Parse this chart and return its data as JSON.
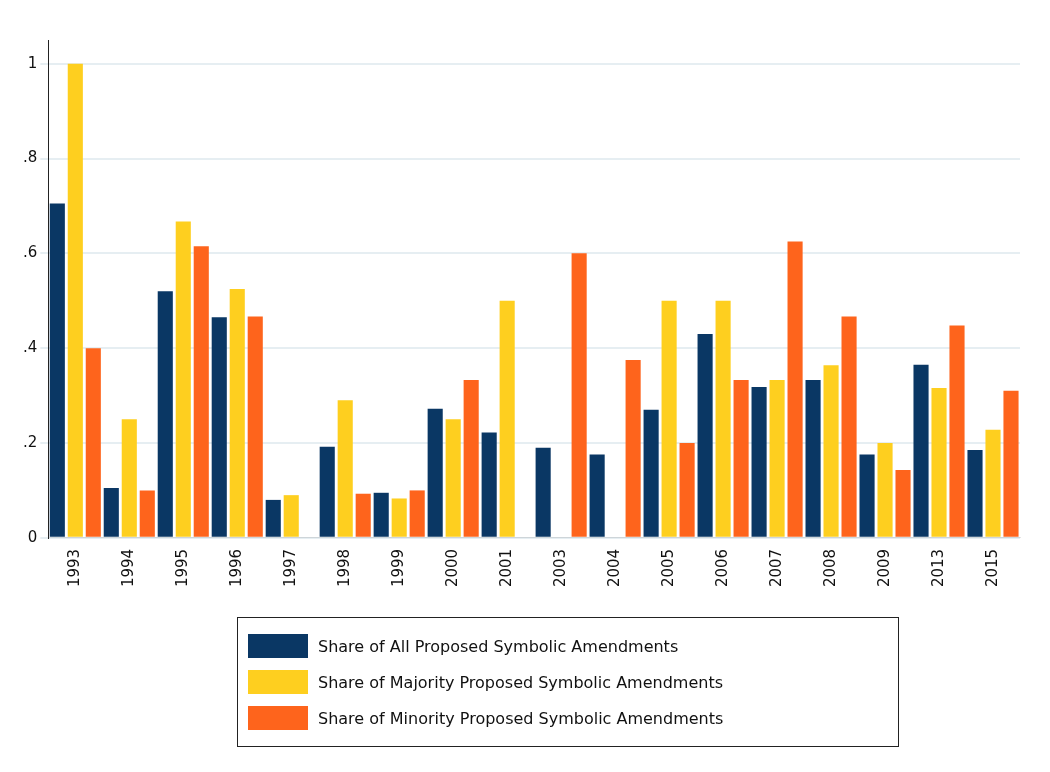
{
  "chart_data": {
    "type": "bar",
    "categories": [
      "1993",
      "1994",
      "1995",
      "1996",
      "1997",
      "1998",
      "1999",
      "2000",
      "2001",
      "2003",
      "2004",
      "2005",
      "2006",
      "2007",
      "2008",
      "2009",
      "2013",
      "2015"
    ],
    "series": [
      {
        "name": "Share of All Proposed Symbolic Amendments",
        "color": "#0a3764",
        "values": [
          0.705,
          0.105,
          0.52,
          0.465,
          0.08,
          0.192,
          0.095,
          0.272,
          0.222,
          0.19,
          0.176,
          0.27,
          0.43,
          0.318,
          0.333,
          0.176,
          0.365,
          0.185
        ]
      },
      {
        "name": "Share of Majority Proposed Symbolic Amendments",
        "color": "#fecf1f",
        "values": [
          1.0,
          0.25,
          0.667,
          0.525,
          0.09,
          0.29,
          0.083,
          0.25,
          0.5,
          null,
          null,
          0.5,
          0.5,
          0.333,
          0.364,
          0.2,
          0.316,
          0.228
        ]
      },
      {
        "name": "Share of Minority Proposed Symbolic Amendments",
        "color": "#fe641c",
        "values": [
          0.4,
          0.1,
          0.615,
          0.467,
          null,
          0.093,
          0.1,
          0.333,
          null,
          0.6,
          0.375,
          0.2,
          0.333,
          0.625,
          0.467,
          0.143,
          0.448,
          0.31
        ]
      }
    ],
    "ylim": [
      0,
      1.05
    ],
    "yticks": [
      {
        "value": 0,
        "label": "0"
      },
      {
        "value": 0.2,
        "label": ".2"
      },
      {
        "value": 0.4,
        "label": ".4"
      },
      {
        "value": 0.6,
        "label": ".6"
      },
      {
        "value": 0.8,
        "label": ".8"
      },
      {
        "value": 1,
        "label": "1"
      }
    ],
    "grid": "y",
    "legend": "bottom"
  }
}
